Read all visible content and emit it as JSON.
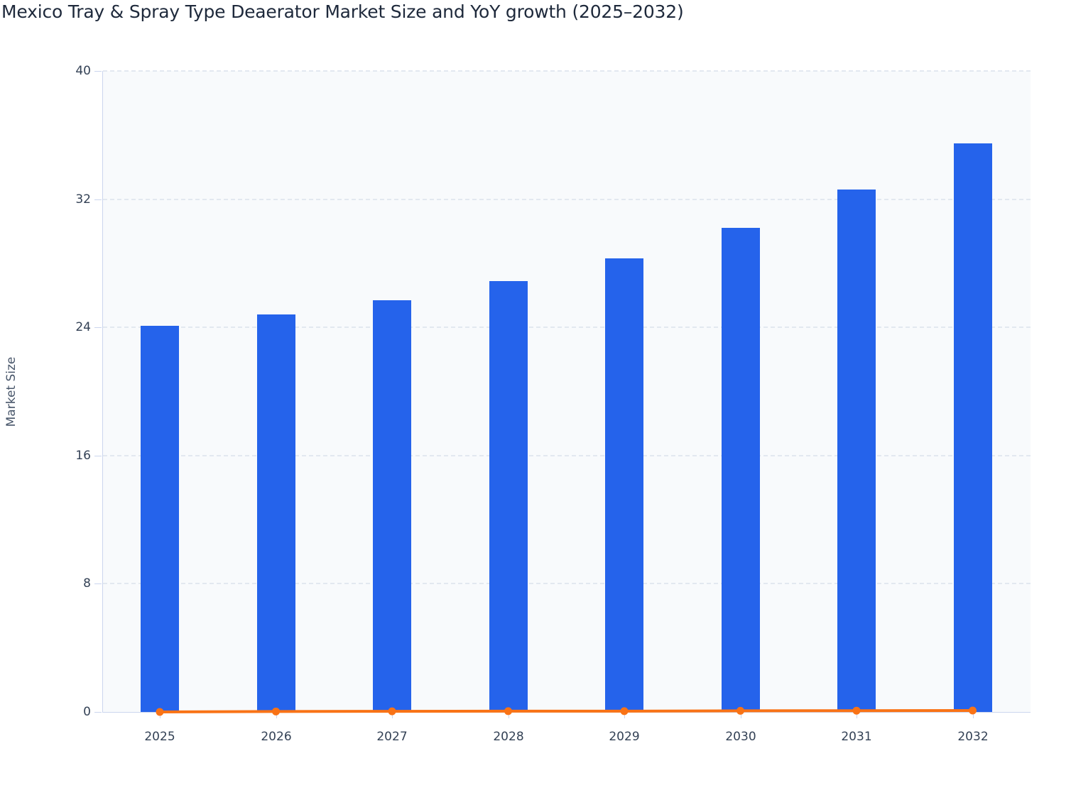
{
  "chart_data": {
    "type": "bar",
    "title": "Mexico Tray & Spray Type Deaerator Market Size and YoY growth (2025–2032)",
    "xlabel": "",
    "ylabel": "Market Size",
    "ylim": [
      0,
      40
    ],
    "yticks": [
      0,
      8,
      16,
      24,
      32,
      40
    ],
    "grid": true,
    "legend": "none",
    "categories": [
      "2025",
      "2026",
      "2027",
      "2028",
      "2029",
      "2030",
      "2031",
      "2032"
    ],
    "series": [
      {
        "name": "Market Size",
        "type": "bar",
        "color": "#2563eb",
        "values": [
          24.1,
          24.8,
          25.7,
          26.9,
          28.3,
          30.2,
          32.6,
          35.5
        ]
      },
      {
        "name": "YoY growth",
        "type": "line",
        "color": "#f97316",
        "values": [
          0.0,
          0.03,
          0.04,
          0.05,
          0.05,
          0.07,
          0.08,
          0.09
        ]
      }
    ]
  },
  "labels": {
    "title": "Mexico Tray & Spray Type Deaerator Market Size and YoY growth (2025–2032)",
    "ytitle": "Market Size",
    "yticks": [
      "0",
      "8",
      "16",
      "24",
      "32",
      "40"
    ],
    "xticks": [
      "2025",
      "2026",
      "2027",
      "2028",
      "2029",
      "2030",
      "2031",
      "2032"
    ]
  }
}
